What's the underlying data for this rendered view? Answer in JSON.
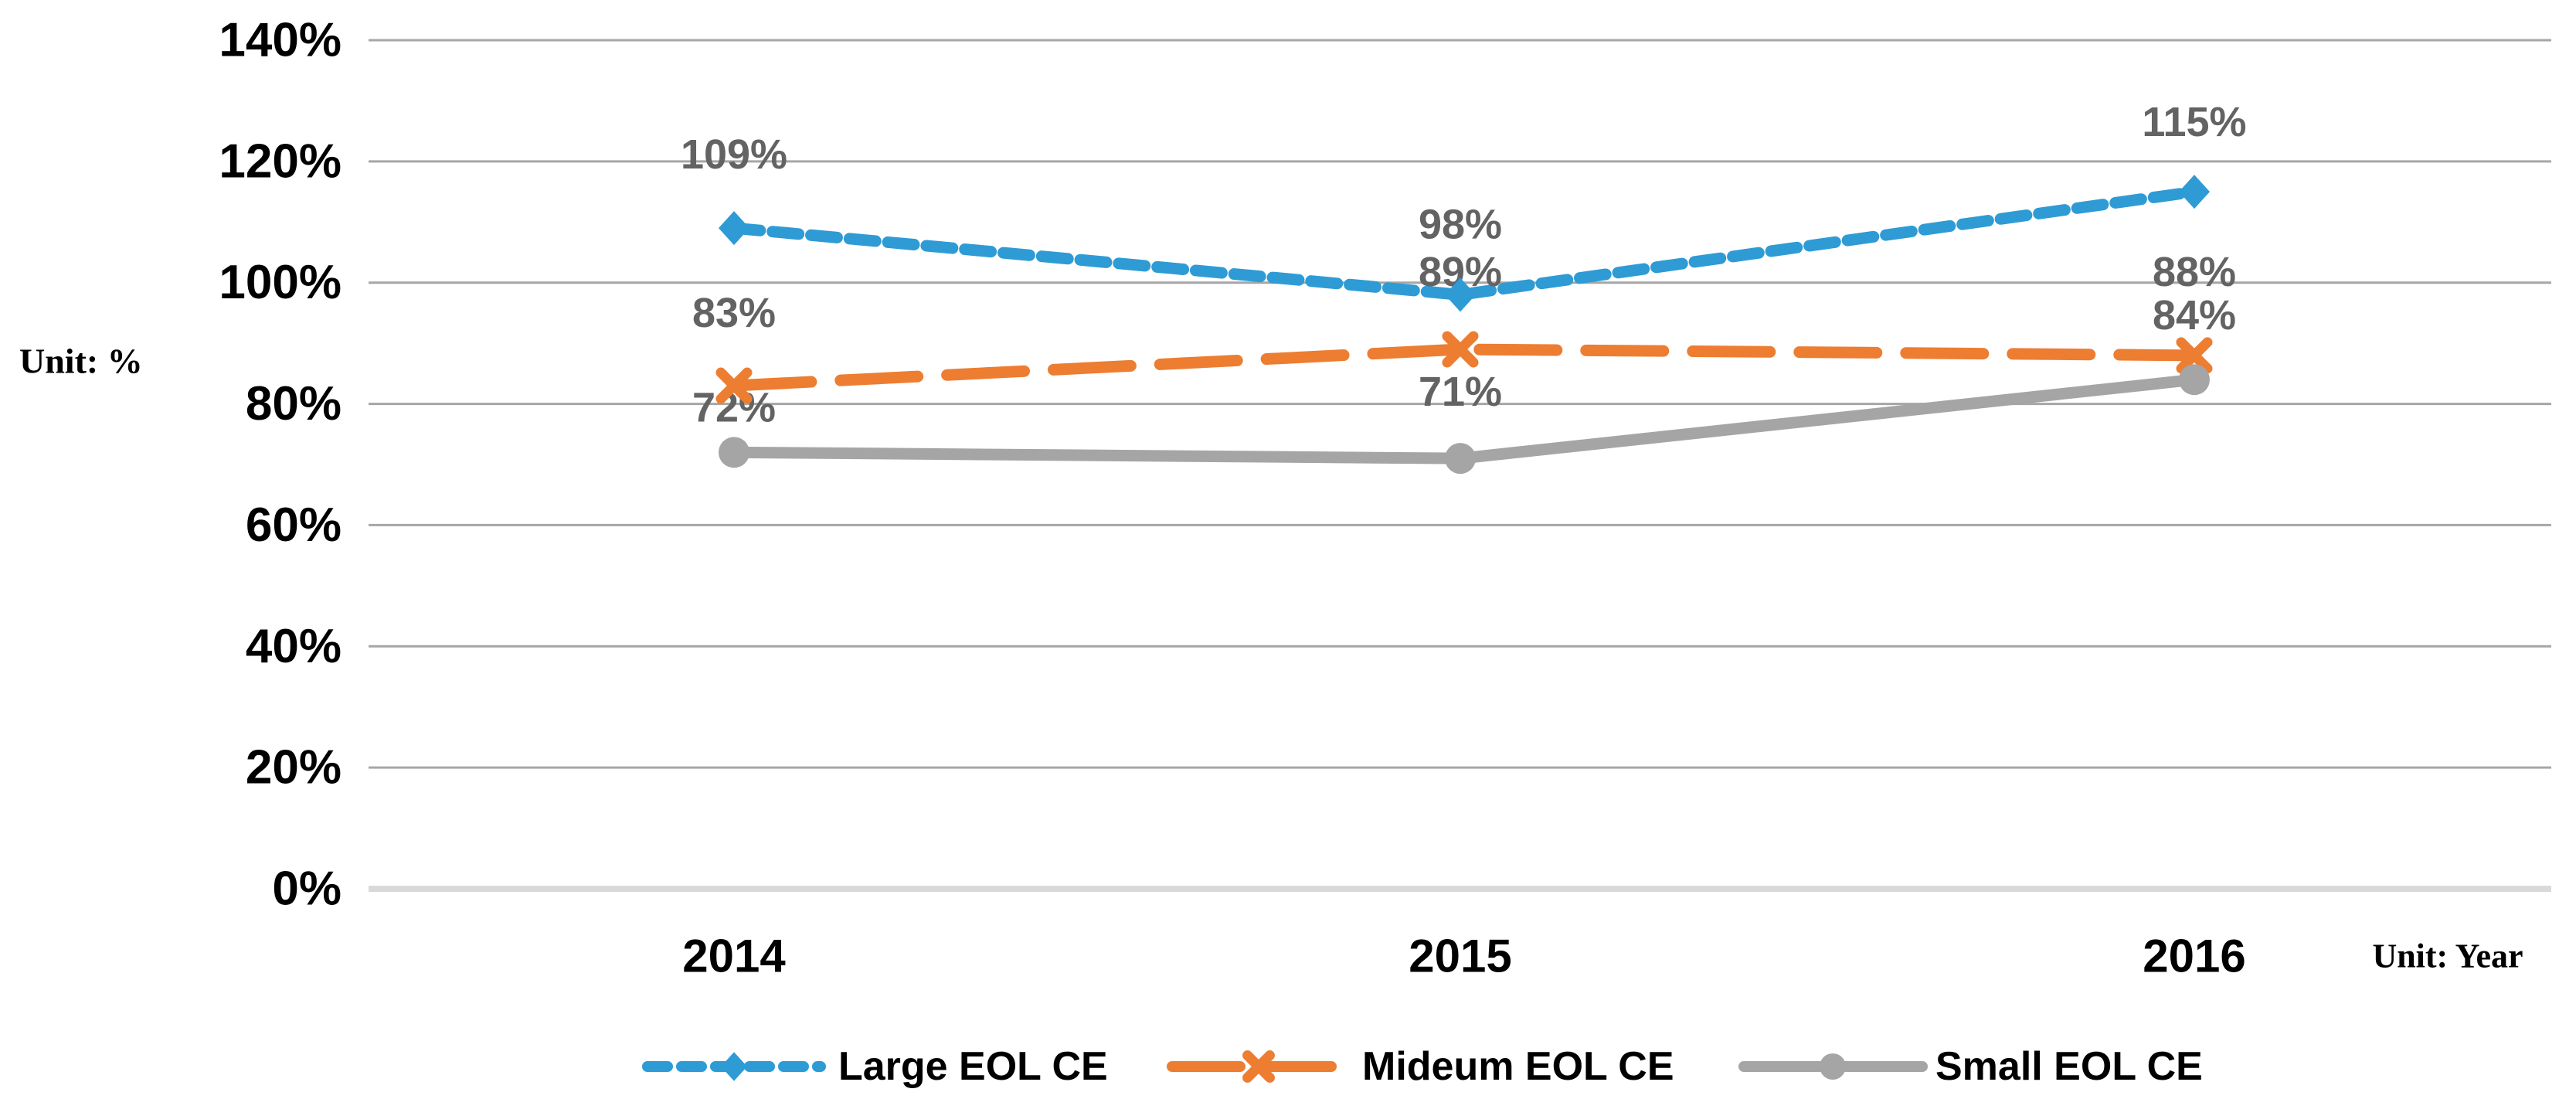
{
  "chart_data": {
    "type": "line",
    "title": "",
    "unit_left": "Unit: %",
    "unit_right": "Unit: Year",
    "xlabel": "Year",
    "ylabel": "%",
    "categories": [
      "2014",
      "2015",
      "2016"
    ],
    "ylim": [
      0,
      140
    ],
    "ytick_step": 20,
    "ytick_labels": [
      "0%",
      "20%",
      "40%",
      "60%",
      "80%",
      "100%",
      "120%",
      "140%"
    ],
    "grid": true,
    "legend_position": "bottom",
    "series": [
      {
        "name": "Large EOL CE",
        "values": [
          109,
          98,
          115
        ],
        "labels": [
          "109%",
          "98%",
          "115%"
        ],
        "color": "#2E9BD5",
        "line_style": "short-dash",
        "marker": "diamond",
        "label_dy": [
          -95,
          -91,
          -90
        ]
      },
      {
        "name": "Mideum EOL CE",
        "values": [
          83,
          89,
          88
        ],
        "labels": [
          "83%",
          "89%",
          "88%"
        ],
        "color": "#ED7D31",
        "line_style": "long-dash",
        "marker": "x",
        "label_dy": [
          -94,
          -100,
          -108
        ]
      },
      {
        "name": "Small EOL CE",
        "values": [
          72,
          71,
          84
        ],
        "labels": [
          "72%",
          "71%",
          "84%"
        ],
        "color": "#A5A5A5",
        "line_style": "solid",
        "marker": "circle",
        "label_dy": [
          -58,
          -86,
          -83
        ]
      }
    ],
    "label_color": "#636363",
    "gridline_color": "#A6A6A6",
    "axisline_color": "#D9D9D9",
    "text_color": "#000000"
  }
}
